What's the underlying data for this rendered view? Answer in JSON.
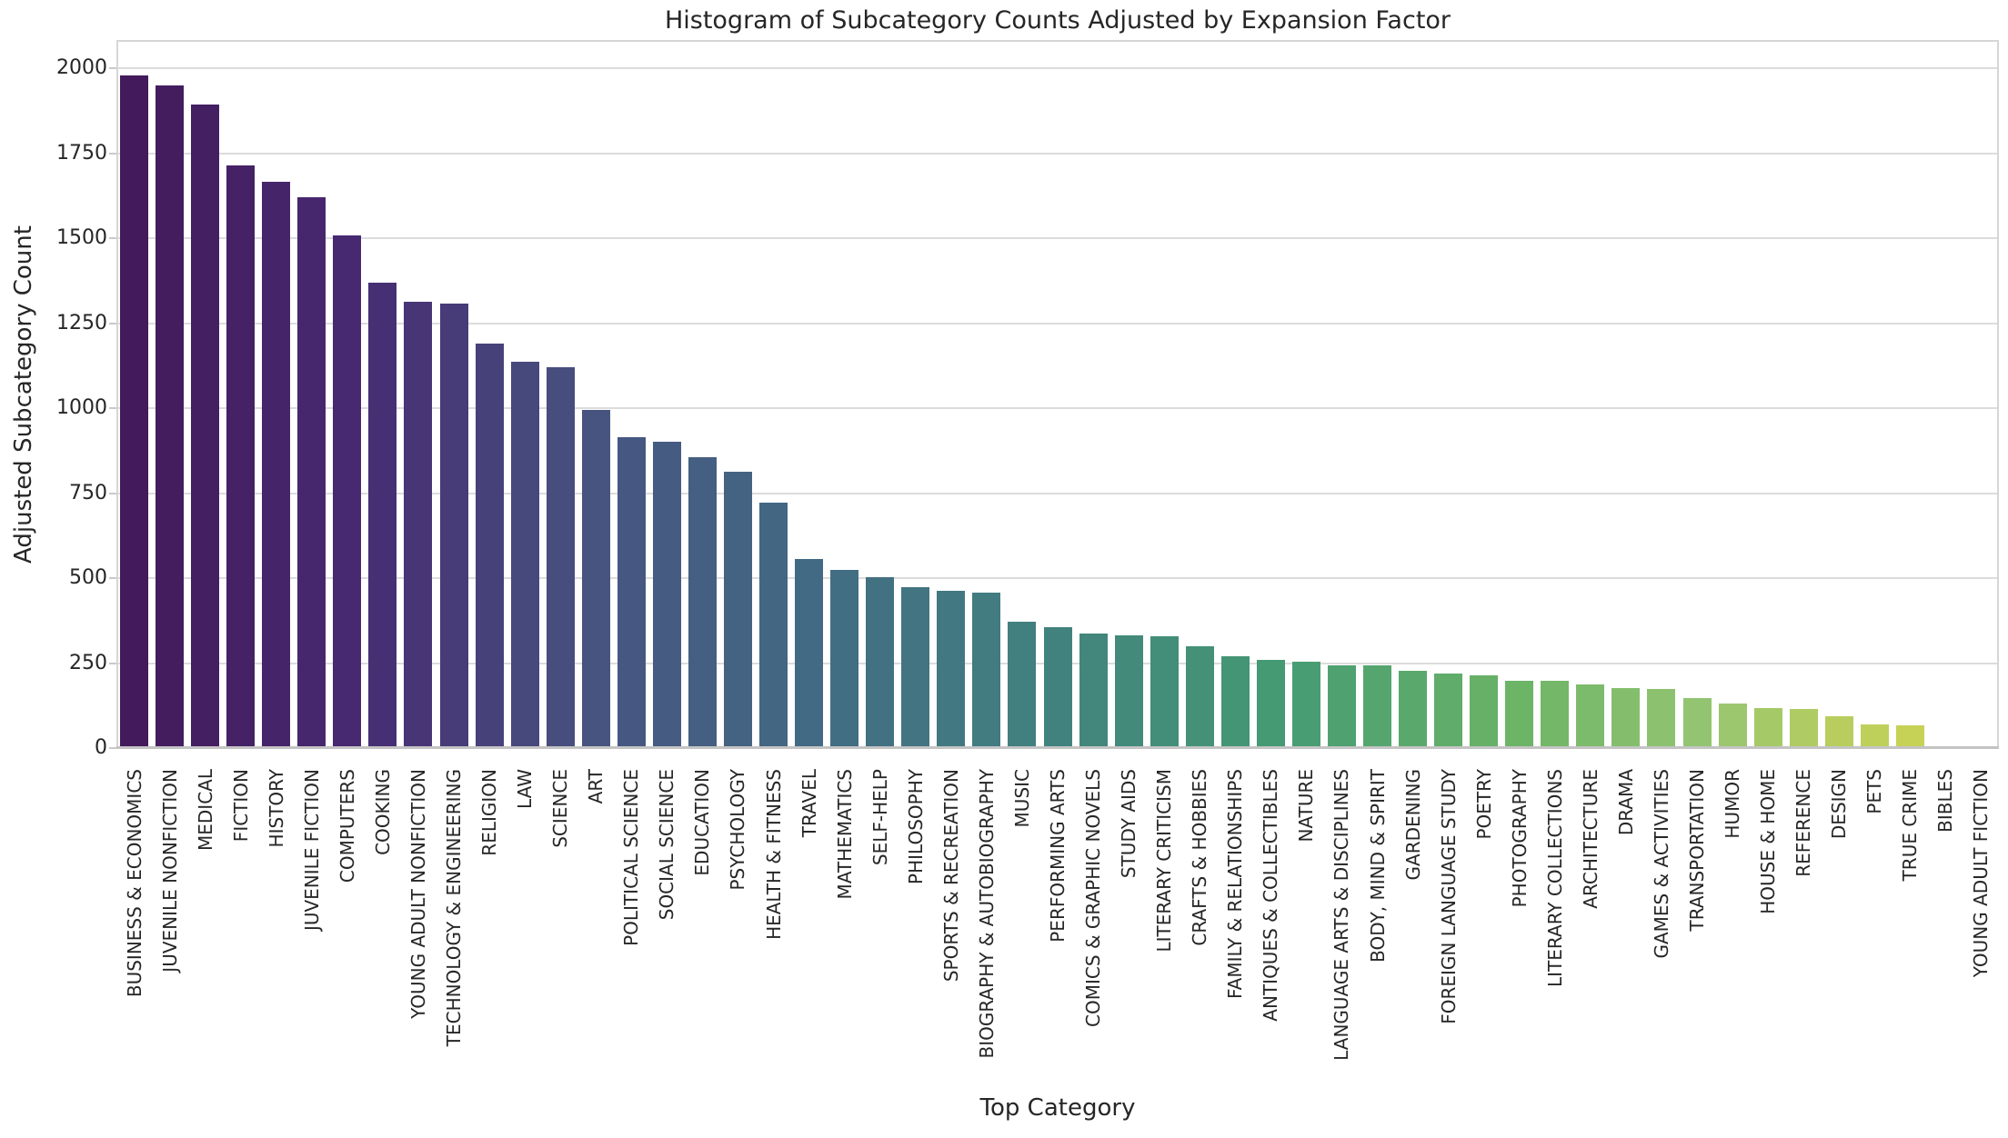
{
  "chart_data": {
    "type": "bar",
    "title": "Histogram of Subcategory Counts Adjusted by Expansion Factor",
    "xlabel": "Top Category",
    "ylabel": "Adjusted Subcategory Count",
    "ylim": [
      0,
      2083
    ],
    "yticks": [
      0,
      250,
      500,
      750,
      1000,
      1250,
      1500,
      1750,
      2000
    ],
    "grid": "horizontal gridlines on, light gray, white background",
    "legend": "none",
    "palette": "viridis (seaborn-desaturated), one color per bar left to right",
    "categories": [
      "BUSINESS & ECONOMICS",
      "JUVENILE NONFICTION",
      "MEDICAL",
      "FICTION",
      "HISTORY",
      "JUVENILE FICTION",
      "COMPUTERS",
      "COOKING",
      "YOUNG ADULT NONFICTION",
      "TECHNOLOGY & ENGINEERING",
      "RELIGION",
      "LAW",
      "SCIENCE",
      "ART",
      "POLITICAL SCIENCE",
      "SOCIAL SCIENCE",
      "EDUCATION",
      "PSYCHOLOGY",
      "HEALTH & FITNESS",
      "TRAVEL",
      "MATHEMATICS",
      "SELF-HELP",
      "PHILOSOPHY",
      "SPORTS & RECREATION",
      "BIOGRAPHY & AUTOBIOGRAPHY",
      "MUSIC",
      "PERFORMING ARTS",
      "COMICS & GRAPHIC NOVELS",
      "STUDY AIDS",
      "LITERARY CRITICISM",
      "CRAFTS & HOBBIES",
      "FAMILY & RELATIONSHIPS",
      "ANTIQUES & COLLECTIBLES",
      "NATURE",
      "LANGUAGE ARTS & DISCIPLINES",
      "BODY, MIND & SPIRIT",
      "GARDENING",
      "FOREIGN LANGUAGE STUDY",
      "POETRY",
      "PHOTOGRAPHY",
      "LITERARY COLLECTIONS",
      "ARCHITECTURE",
      "DRAMA",
      "GAMES & ACTIVITIES",
      "TRANSPORTATION",
      "HUMOR",
      "HOUSE & HOME",
      "REFERENCE",
      "DESIGN",
      "PETS",
      "TRUE CRIME",
      "BIBLES",
      "YOUNG ADULT FICTION"
    ],
    "values": [
      1978,
      1948,
      1893,
      1714,
      1666,
      1620,
      1509,
      1368,
      1312,
      1308,
      1190,
      1136,
      1120,
      994,
      915,
      900,
      855,
      812,
      722,
      556,
      524,
      503,
      472,
      462,
      457,
      372,
      356,
      338,
      331,
      329,
      299,
      269,
      259,
      255,
      244,
      242,
      228,
      220,
      215,
      199,
      197,
      188,
      177,
      175,
      146,
      130,
      117,
      114,
      94,
      70,
      67,
      0,
      0
    ],
    "palette_anchors": [
      {
        "t": 0.0,
        "color": "#431a5b"
      },
      {
        "t": 0.12,
        "color": "#472a72"
      },
      {
        "t": 0.25,
        "color": "#475480"
      },
      {
        "t": 0.37,
        "color": "#426b84"
      },
      {
        "t": 0.5,
        "color": "#42827e"
      },
      {
        "t": 0.62,
        "color": "#459a73"
      },
      {
        "t": 0.75,
        "color": "#6cb466"
      },
      {
        "t": 0.85,
        "color": "#95c572"
      },
      {
        "t": 0.92,
        "color": "#b7cd5e"
      },
      {
        "t": 1.0,
        "color": "#d3d64f"
      }
    ],
    "colors": {
      "background": "#ffffff",
      "gridline": "#dcdcdc",
      "spine": "#d6d6d6",
      "axis_line": "#c4c4c4",
      "text": "#262626"
    }
  }
}
